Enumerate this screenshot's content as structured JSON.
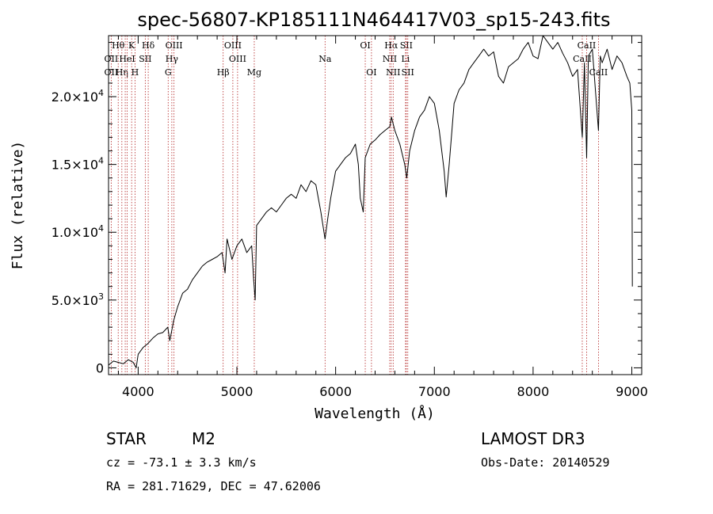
{
  "chart_data": {
    "type": "line",
    "title": "spec-56807-KP185111N464417V03_sp15-243.fits",
    "xlabel": "Wavelength (Å)",
    "ylabel": "Flux (relative)",
    "xlim": [
      3700,
      9100
    ],
    "ylim": [
      -500,
      24500
    ],
    "x_ticks": [
      4000,
      5000,
      6000,
      7000,
      8000,
      9000
    ],
    "y_ticks": [
      {
        "value": 0,
        "mantissa": "0",
        "exp": ""
      },
      {
        "value": 5000,
        "mantissa": "5.0×10",
        "exp": "3"
      },
      {
        "value": 10000,
        "mantissa": "1.0×10",
        "exp": "4"
      },
      {
        "value": 15000,
        "mantissa": "1.5×10",
        "exp": "4"
      },
      {
        "value": 20000,
        "mantissa": "2.0×10",
        "exp": "4"
      }
    ],
    "series": [
      {
        "name": "spectrum",
        "x": [
          3700,
          3750,
          3800,
          3850,
          3900,
          3950,
          3980,
          4000,
          4050,
          4100,
          4150,
          4200,
          4250,
          4300,
          4320,
          4360,
          4400,
          4450,
          4500,
          4550,
          4600,
          4650,
          4700,
          4750,
          4800,
          4850,
          4880,
          4900,
          4950,
          5000,
          5050,
          5100,
          5150,
          5170,
          5185,
          5200,
          5250,
          5300,
          5350,
          5400,
          5450,
          5500,
          5550,
          5600,
          5650,
          5700,
          5750,
          5800,
          5850,
          5893,
          5920,
          5950,
          6000,
          6050,
          6100,
          6150,
          6200,
          6230,
          6250,
          6280,
          6300,
          6350,
          6400,
          6450,
          6500,
          6550,
          6565,
          6600,
          6650,
          6700,
          6720,
          6750,
          6800,
          6850,
          6900,
          6950,
          7000,
          7050,
          7100,
          7120,
          7150,
          7200,
          7250,
          7300,
          7350,
          7400,
          7450,
          7500,
          7550,
          7600,
          7650,
          7700,
          7750,
          7800,
          7850,
          7900,
          7950,
          8000,
          8050,
          8100,
          8150,
          8200,
          8250,
          8300,
          8350,
          8400,
          8450,
          8498,
          8520,
          8542,
          8560,
          8600,
          8662,
          8680,
          8700,
          8750,
          8800,
          8850,
          8900,
          8950,
          8980,
          9000,
          9005
        ],
        "values": [
          200,
          500,
          400,
          300,
          600,
          400,
          0,
          1000,
          1500,
          1800,
          2200,
          2500,
          2600,
          3000,
          2000,
          3500,
          4500,
          5500,
          5800,
          6500,
          7000,
          7500,
          7800,
          8000,
          8200,
          8500,
          7000,
          9500,
          8000,
          9000,
          9500,
          8500,
          9000,
          6500,
          5000,
          10500,
          11000,
          11500,
          11800,
          11500,
          12000,
          12500,
          12800,
          12500,
          13500,
          13000,
          13800,
          13500,
          11500,
          9500,
          11000,
          12500,
          14500,
          15000,
          15500,
          15800,
          16500,
          15000,
          12500,
          11500,
          15500,
          16500,
          16800,
          17200,
          17500,
          17800,
          18500,
          17500,
          16500,
          15000,
          14000,
          16000,
          17500,
          18500,
          19000,
          20000,
          19500,
          17500,
          14500,
          12600,
          15000,
          19500,
          20500,
          21000,
          22000,
          22500,
          23000,
          23500,
          23000,
          23300,
          21500,
          21000,
          22200,
          22500,
          22800,
          23500,
          24000,
          23000,
          22800,
          24500,
          24000,
          23500,
          24000,
          23200,
          22500,
          21500,
          22000,
          17000,
          22500,
          15500,
          23000,
          23500,
          17500,
          23000,
          22500,
          23500,
          22000,
          23000,
          22500,
          21500,
          21000,
          19000,
          6000
        ]
      }
    ],
    "spectral_lines": [
      {
        "wavelength": 3727,
        "labels": [
          "",
          "OII",
          "OII"
        ]
      },
      {
        "wavelength": 3798,
        "labels": [
          "Hθ",
          "",
          ""
        ]
      },
      {
        "wavelength": 3835,
        "labels": [
          "",
          "",
          "Hη"
        ]
      },
      {
        "wavelength": 3869,
        "labels": [
          "",
          "",
          ""
        ]
      },
      {
        "wavelength": 3889,
        "labels": [
          "",
          "HeI",
          ""
        ]
      },
      {
        "wavelength": 3934,
        "labels": [
          "K",
          "",
          ""
        ]
      },
      {
        "wavelength": 3968,
        "labels": [
          "",
          "",
          "H"
        ]
      },
      {
        "wavelength": 4072,
        "labels": [
          "",
          "SII",
          ""
        ]
      },
      {
        "wavelength": 4102,
        "labels": [
          "Hδ",
          "",
          ""
        ]
      },
      {
        "wavelength": 4304,
        "labels": [
          "",
          "",
          "G"
        ]
      },
      {
        "wavelength": 4341,
        "labels": [
          "",
          "Hγ",
          ""
        ]
      },
      {
        "wavelength": 4363,
        "labels": [
          "OIII",
          "",
          ""
        ]
      },
      {
        "wavelength": 4861,
        "labels": [
          "",
          "",
          "Hβ"
        ]
      },
      {
        "wavelength": 4959,
        "labels": [
          "OIII",
          "",
          ""
        ]
      },
      {
        "wavelength": 5007,
        "labels": [
          "",
          "OIII",
          ""
        ]
      },
      {
        "wavelength": 5176,
        "labels": [
          "",
          "",
          "Mg"
        ]
      },
      {
        "wavelength": 5893,
        "labels": [
          "",
          "Na",
          ""
        ]
      },
      {
        "wavelength": 6300,
        "labels": [
          "OI",
          "",
          ""
        ]
      },
      {
        "wavelength": 6363,
        "labels": [
          "",
          "",
          "OI"
        ]
      },
      {
        "wavelength": 6548,
        "labels": [
          "",
          "NII",
          ""
        ]
      },
      {
        "wavelength": 6563,
        "labels": [
          "Hα",
          "",
          ""
        ]
      },
      {
        "wavelength": 6583,
        "labels": [
          "",
          "",
          "NII"
        ]
      },
      {
        "wavelength": 6708,
        "labels": [
          "",
          "Li",
          ""
        ]
      },
      {
        "wavelength": 6716,
        "labels": [
          "SII",
          "",
          ""
        ]
      },
      {
        "wavelength": 6731,
        "labels": [
          "",
          "",
          "SII"
        ]
      },
      {
        "wavelength": 8498,
        "labels": [
          "",
          "CaII",
          ""
        ]
      },
      {
        "wavelength": 8542,
        "labels": [
          "CaII",
          "",
          ""
        ]
      },
      {
        "wavelength": 8662,
        "labels": [
          "",
          "",
          "CaII"
        ]
      }
    ]
  },
  "info": {
    "object_class": "STAR",
    "subclass": "M2",
    "survey": "LAMOST DR3",
    "redshift": "cz = -73.1 ± 3.3 km/s",
    "obs_date": "Obs-Date: 20140529",
    "coords": "RA = 281.71629, DEC =  47.62006"
  }
}
